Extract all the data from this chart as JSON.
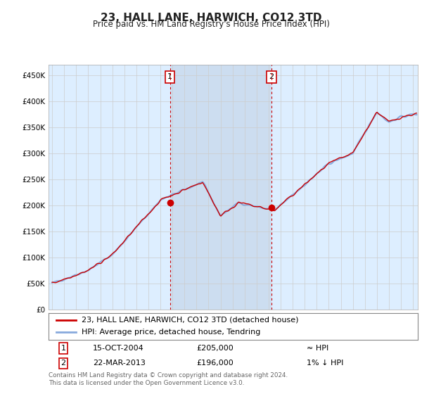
{
  "title": "23, HALL LANE, HARWICH, CO12 3TD",
  "subtitle": "Price paid vs. HM Land Registry's House Price Index (HPI)",
  "ylabel_ticks": [
    "£0",
    "£50K",
    "£100K",
    "£150K",
    "£200K",
    "£250K",
    "£300K",
    "£350K",
    "£400K",
    "£450K"
  ],
  "ytick_values": [
    0,
    50000,
    100000,
    150000,
    200000,
    250000,
    300000,
    350000,
    400000,
    450000
  ],
  "ylim": [
    0,
    470000
  ],
  "sale1_date": 2004.79,
  "sale1_price": 205000,
  "sale2_date": 2013.22,
  "sale2_price": 196000,
  "red_line_color": "#cc0000",
  "blue_line_color": "#88aadd",
  "vline_color": "#cc0000",
  "grid_color": "#cccccc",
  "plot_bg": "#ddeeff",
  "highlight_bg": "#ccddf0",
  "legend_label_red": "23, HALL LANE, HARWICH, CO12 3TD (detached house)",
  "legend_label_blue": "HPI: Average price, detached house, Tendring",
  "table_row1": [
    "1",
    "15-OCT-2004",
    "£205,000",
    "≈ HPI"
  ],
  "table_row2": [
    "2",
    "22-MAR-2013",
    "£196,000",
    "1% ↓ HPI"
  ],
  "footer": "Contains HM Land Registry data © Crown copyright and database right 2024.\nThis data is licensed under the Open Government Licence v3.0."
}
